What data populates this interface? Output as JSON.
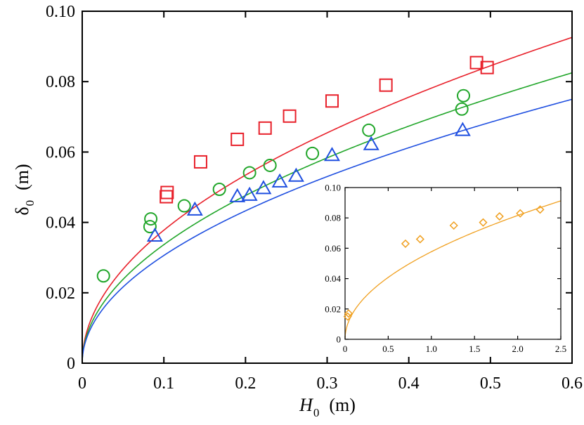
{
  "chart_data": {
    "type": "scatter",
    "title": "",
    "xlabel": {
      "symbol": "H",
      "subscript": "0",
      "unit": "(m)"
    },
    "ylabel": {
      "symbol": "δ",
      "subscript": "0",
      "unit": "(m)"
    },
    "xlim": [
      0,
      0.6
    ],
    "ylim": [
      0,
      0.1
    ],
    "x_ticks": [
      0,
      0.1,
      0.2,
      0.3,
      0.4,
      0.5,
      0.6
    ],
    "x_tick_labels": [
      "0",
      "0.1",
      "0.2",
      "0.3",
      "0.4",
      "0.5",
      "0.6"
    ],
    "y_ticks": [
      0,
      0.02,
      0.04,
      0.06,
      0.08,
      0.1
    ],
    "y_tick_labels": [
      "0",
      "0.02",
      "0.04",
      "0.06",
      "0.08",
      "0.10"
    ],
    "series": [
      {
        "name": "squares",
        "marker": "square",
        "color": "#e8202a",
        "x": [
          0.103,
          0.104,
          0.145,
          0.19,
          0.224,
          0.254,
          0.306,
          0.372,
          0.483,
          0.496
        ],
        "y": [
          0.0473,
          0.0485,
          0.0572,
          0.0636,
          0.0668,
          0.0702,
          0.0745,
          0.079,
          0.0854,
          0.084
        ],
        "fit": {
          "a": 0.1195,
          "b": 0.5
        }
      },
      {
        "name": "circles",
        "marker": "circle",
        "color": "#21a62a",
        "x": [
          0.026,
          0.083,
          0.084,
          0.125,
          0.168,
          0.205,
          0.23,
          0.282,
          0.351,
          0.465,
          0.467
        ],
        "y": [
          0.0248,
          0.0388,
          0.041,
          0.0447,
          0.0494,
          0.0541,
          0.0562,
          0.0596,
          0.0662,
          0.0722,
          0.076
        ],
        "fit": {
          "a": 0.1065,
          "b": 0.5
        }
      },
      {
        "name": "triangles",
        "marker": "triangle",
        "color": "#1f4fe0",
        "x": [
          0.089,
          0.138,
          0.19,
          0.205,
          0.222,
          0.242,
          0.262,
          0.306,
          0.354,
          0.466
        ],
        "y": [
          0.0362,
          0.0436,
          0.0474,
          0.0478,
          0.0497,
          0.0516,
          0.0532,
          0.0591,
          0.0622,
          0.0662
        ],
        "fit": {
          "a": 0.0968,
          "b": 0.5
        }
      }
    ],
    "inset": {
      "type": "scatter",
      "xlim": [
        0,
        2.5
      ],
      "ylim": [
        0,
        0.1
      ],
      "x_ticks": [
        0,
        0.5,
        1.0,
        1.5,
        2.0,
        2.5
      ],
      "x_tick_labels": [
        "0",
        "0.5",
        "1.0",
        "1.5",
        "2.0",
        "2.5"
      ],
      "y_ticks": [
        0,
        0.02,
        0.04,
        0.06,
        0.08,
        0.1
      ],
      "y_tick_labels": [
        "0",
        "0.02",
        "0.04",
        "0.06",
        "0.08",
        "0.10"
      ],
      "series": [
        {
          "name": "diamonds",
          "marker": "diamond",
          "color": "#f0a020",
          "x": [
            0.03,
            0.04,
            0.7,
            0.87,
            1.26,
            1.6,
            1.79,
            2.03,
            2.26
          ],
          "y": [
            0.015,
            0.017,
            0.063,
            0.066,
            0.075,
            0.077,
            0.081,
            0.083,
            0.0855
          ],
          "fit": {
            "a": 0.0577,
            "b": 0.5
          }
        }
      ]
    }
  }
}
